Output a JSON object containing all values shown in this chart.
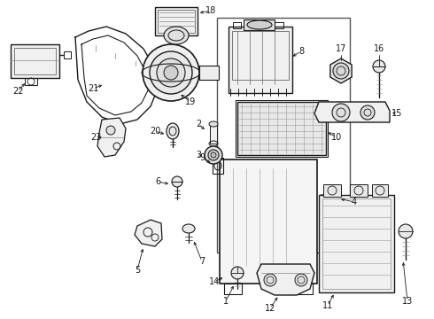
{
  "bg_color": "#ffffff",
  "line_color": "#1a1a1a",
  "gray": "#888888",
  "light_gray": "#aaaaaa",
  "fig_w": 4.9,
  "fig_h": 3.6,
  "dpi": 100
}
